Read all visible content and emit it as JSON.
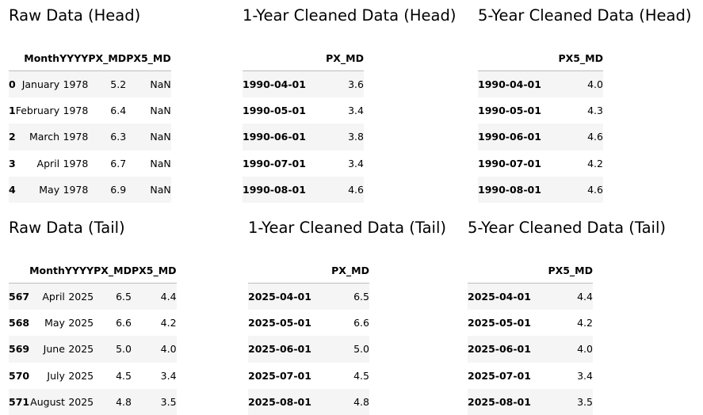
{
  "panels": [
    {
      "key": "raw_head",
      "title": "Raw Data (Head)",
      "columns": [
        "",
        "Month",
        "YYYY",
        "PX_MD",
        "PX5_MD"
      ],
      "rows": [
        [
          "0",
          "January",
          "1978",
          "5.2",
          "NaN"
        ],
        [
          "1",
          "February",
          "1978",
          "6.4",
          "NaN"
        ],
        [
          "2",
          "March",
          "1978",
          "6.3",
          "NaN"
        ],
        [
          "3",
          "April",
          "1978",
          "6.7",
          "NaN"
        ],
        [
          "4",
          "May",
          "1978",
          "6.9",
          "NaN"
        ]
      ]
    },
    {
      "key": "one_year_head",
      "title": "1-Year Cleaned Data (Head)",
      "columns": [
        "",
        "PX_MD"
      ],
      "rows": [
        [
          "1990-04-01",
          "3.6"
        ],
        [
          "1990-05-01",
          "3.4"
        ],
        [
          "1990-06-01",
          "3.8"
        ],
        [
          "1990-07-01",
          "3.4"
        ],
        [
          "1990-08-01",
          "4.6"
        ]
      ]
    },
    {
      "key": "five_year_head",
      "title": "5-Year Cleaned Data (Head)",
      "columns": [
        "",
        "PX5_MD"
      ],
      "rows": [
        [
          "1990-04-01",
          "4.0"
        ],
        [
          "1990-05-01",
          "4.3"
        ],
        [
          "1990-06-01",
          "4.6"
        ],
        [
          "1990-07-01",
          "4.2"
        ],
        [
          "1990-08-01",
          "4.6"
        ]
      ]
    },
    {
      "key": "raw_tail",
      "title": "Raw Data (Tail)",
      "columns": [
        "",
        "Month",
        "YYYY",
        "PX_MD",
        "PX5_MD"
      ],
      "rows": [
        [
          "567",
          "April",
          "2025",
          "6.5",
          "4.4"
        ],
        [
          "568",
          "May",
          "2025",
          "6.6",
          "4.2"
        ],
        [
          "569",
          "June",
          "2025",
          "5.0",
          "4.0"
        ],
        [
          "570",
          "July",
          "2025",
          "4.5",
          "3.4"
        ],
        [
          "571",
          "August",
          "2025",
          "4.8",
          "3.5"
        ]
      ]
    },
    {
      "key": "one_year_tail",
      "title": "1-Year Cleaned Data (Tail)",
      "columns": [
        "",
        "PX_MD"
      ],
      "rows": [
        [
          "2025-04-01",
          "6.5"
        ],
        [
          "2025-05-01",
          "6.6"
        ],
        [
          "2025-06-01",
          "5.0"
        ],
        [
          "2025-07-01",
          "4.5"
        ],
        [
          "2025-08-01",
          "4.8"
        ]
      ]
    },
    {
      "key": "five_year_tail",
      "title": "5-Year Cleaned Data (Tail)",
      "columns": [
        "",
        "PX5_MD"
      ],
      "rows": [
        [
          "2025-04-01",
          "4.4"
        ],
        [
          "2025-05-01",
          "4.2"
        ],
        [
          "2025-06-01",
          "4.0"
        ],
        [
          "2025-07-01",
          "3.4"
        ],
        [
          "2025-08-01",
          "3.5"
        ]
      ]
    }
  ]
}
